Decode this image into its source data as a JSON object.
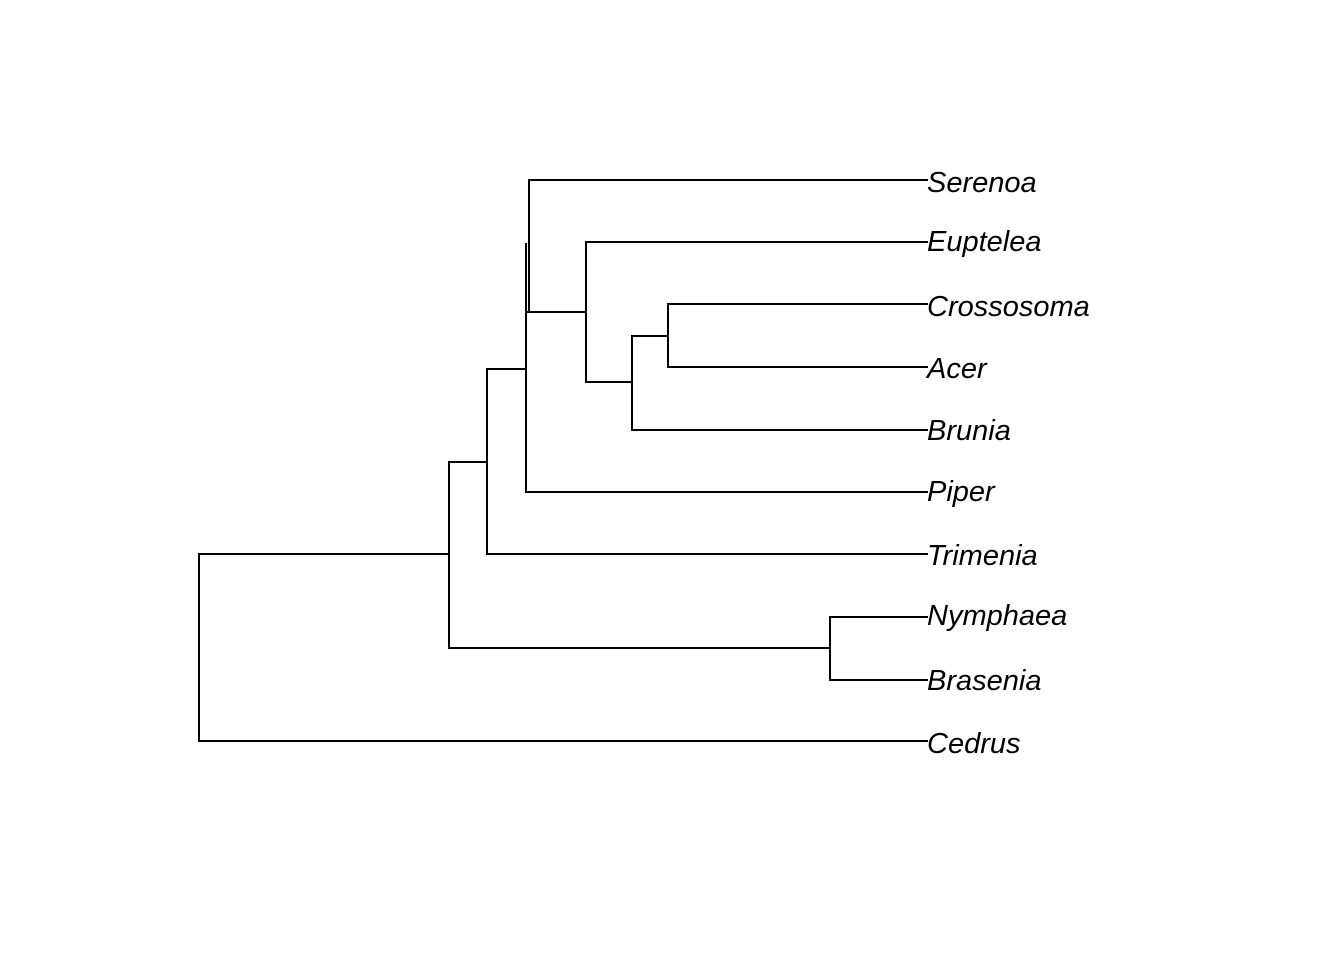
{
  "tree": {
    "tips": [
      {
        "id": "serenoa",
        "label": "Serenoa"
      },
      {
        "id": "euptelea",
        "label": "Euptelea"
      },
      {
        "id": "crossosoma",
        "label": "Crossosoma"
      },
      {
        "id": "acer",
        "label": "Acer"
      },
      {
        "id": "brunia",
        "label": "Brunia"
      },
      {
        "id": "piper",
        "label": "Piper"
      },
      {
        "id": "trimenia",
        "label": "Trimenia"
      },
      {
        "id": "nymphaea",
        "label": "Nymphaea"
      },
      {
        "id": "brasenia",
        "label": "Brasenia"
      },
      {
        "id": "cedrus",
        "label": "Cedrus"
      }
    ],
    "edges": [
      {
        "parent": "root",
        "child": "n_angio"
      },
      {
        "parent": "root",
        "child": "cedrus"
      },
      {
        "parent": "n_angio",
        "child": "n_core"
      },
      {
        "parent": "n_angio",
        "child": "n_nymph"
      },
      {
        "parent": "n_nymph",
        "child": "nymphaea"
      },
      {
        "parent": "n_nymph",
        "child": "brasenia"
      },
      {
        "parent": "n_core",
        "child": "n_meso"
      },
      {
        "parent": "n_core",
        "child": "trimenia"
      },
      {
        "parent": "n_meso",
        "child": "n_a"
      },
      {
        "parent": "n_meso",
        "child": "piper"
      },
      {
        "parent": "n_a",
        "child": "serenoa"
      },
      {
        "parent": "n_a",
        "child": "n_eud"
      },
      {
        "parent": "n_eud",
        "child": "euptelea"
      },
      {
        "parent": "n_eud",
        "child": "n_ros"
      },
      {
        "parent": "n_ros",
        "child": "n_ca"
      },
      {
        "parent": "n_ros",
        "child": "brunia"
      },
      {
        "parent": "n_ca",
        "child": "crossosoma"
      },
      {
        "parent": "n_ca",
        "child": "acer"
      }
    ]
  }
}
